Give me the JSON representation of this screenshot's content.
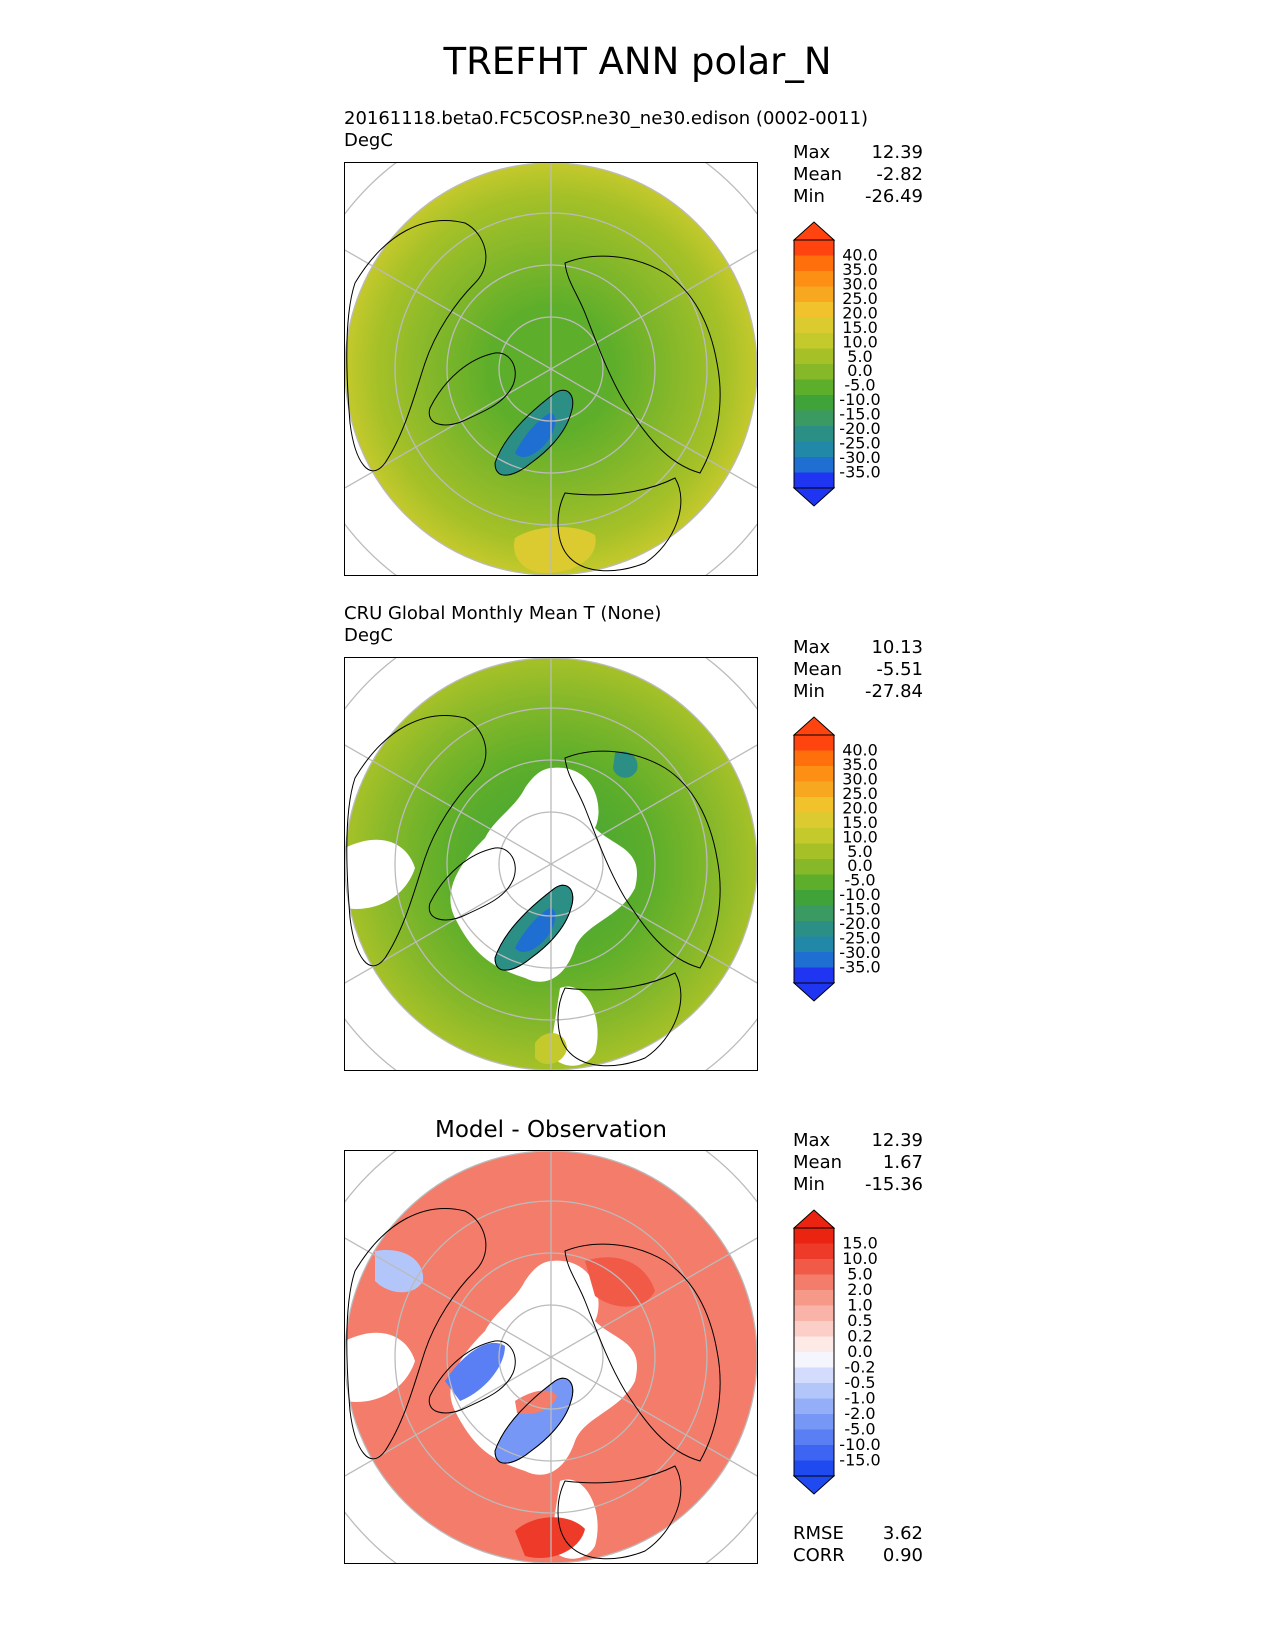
{
  "title": "TREFHT ANN polar_N",
  "panels": [
    {
      "id": "model",
      "subtitle": "20161118.beta0.FC5COSP.ne30_ne30.edison (0002-0011)",
      "units": "DegC",
      "panel_title": "",
      "stats": [
        {
          "label": "Max",
          "value": "12.39"
        },
        {
          "label": "Mean",
          "value": "-2.82"
        },
        {
          "label": "Min",
          "value": "-26.49"
        }
      ],
      "colorbar_levels": [
        "40.0",
        "35.0",
        "30.0",
        "25.0",
        "20.0",
        "15.0",
        "10.0",
        "5.0",
        "0.0",
        "-5.0",
        "-10.0",
        "-15.0",
        "-20.0",
        "-25.0",
        "-30.0",
        "-35.0"
      ],
      "extra_stats": []
    },
    {
      "id": "obs",
      "subtitle": "CRU Global Monthly Mean T (None)",
      "units": "DegC",
      "panel_title": "",
      "stats": [
        {
          "label": "Max",
          "value": "10.13"
        },
        {
          "label": "Mean",
          "value": "-5.51"
        },
        {
          "label": "Min",
          "value": "-27.84"
        }
      ],
      "colorbar_levels": [
        "40.0",
        "35.0",
        "30.0",
        "25.0",
        "20.0",
        "15.0",
        "10.0",
        "5.0",
        "0.0",
        "-5.0",
        "-10.0",
        "-15.0",
        "-20.0",
        "-25.0",
        "-30.0",
        "-35.0"
      ],
      "extra_stats": []
    },
    {
      "id": "diff",
      "subtitle": "",
      "units": "",
      "panel_title": "Model - Observation",
      "stats": [
        {
          "label": "Max",
          "value": "12.39"
        },
        {
          "label": "Mean",
          "value": "1.67"
        },
        {
          "label": "Min",
          "value": "-15.36"
        }
      ],
      "colorbar_levels": [
        "15.0",
        "10.0",
        "5.0",
        "2.0",
        "1.0",
        "0.5",
        "0.2",
        "0.0",
        "-0.2",
        "-0.5",
        "-1.0",
        "-2.0",
        "-5.0",
        "-10.0",
        "-15.0"
      ],
      "extra_stats": [
        {
          "label": "RMSE",
          "value": "3.62"
        },
        {
          "label": "CORR",
          "value": "0.90"
        }
      ]
    }
  ],
  "colors": {
    "temp_scale": [
      "#1f35f2",
      "#1f6fd2",
      "#2288a8",
      "#2c8f86",
      "#3a9a62",
      "#3fa33a",
      "#5dae2a",
      "#86b82a",
      "#a6c128",
      "#c4c92c",
      "#dccb30",
      "#f1c22c",
      "#f7a820",
      "#fc8f14",
      "#ff700c",
      "#ff4410"
    ],
    "diff_scale": [
      "#1f4af0",
      "#3d64f2",
      "#5a7ef4",
      "#7797f6",
      "#94aff8",
      "#b3c6fa",
      "#d3dcfc",
      "#f4f5fd",
      "#fde9e6",
      "#fbcfc8",
      "#f9b3a8",
      "#f69988",
      "#f47c6a",
      "#f25a48",
      "#ee3a28",
      "#ea2410"
    ],
    "grid": "#bbbbbb",
    "coast": "#000000"
  },
  "chart_data": [
    {
      "type": "heatmap",
      "title": "20161118.beta0.FC5COSP.ne30_ne30.edison (0002-0011)",
      "units": "DegC",
      "projection": "north polar stereographic",
      "levels": [
        -35,
        -30,
        -25,
        -20,
        -15,
        -10,
        -5,
        0,
        5,
        10,
        15,
        20,
        25,
        30,
        35,
        40
      ],
      "max": 12.39,
      "mean": -2.82,
      "min": -26.49
    },
    {
      "type": "heatmap",
      "title": "CRU Global Monthly Mean T (None)",
      "units": "DegC",
      "projection": "north polar stereographic",
      "levels": [
        -35,
        -30,
        -25,
        -20,
        -15,
        -10,
        -5,
        0,
        5,
        10,
        15,
        20,
        25,
        30,
        35,
        40
      ],
      "max": 10.13,
      "mean": -5.51,
      "min": -27.84
    },
    {
      "type": "heatmap",
      "title": "Model - Observation",
      "projection": "north polar stereographic",
      "levels": [
        -15,
        -10,
        -5,
        -2,
        -1,
        -0.5,
        -0.2,
        0,
        0.2,
        0.5,
        1,
        2,
        5,
        10,
        15
      ],
      "max": 12.39,
      "mean": 1.67,
      "min": -15.36,
      "rmse": 3.62,
      "corr": 0.9
    }
  ]
}
